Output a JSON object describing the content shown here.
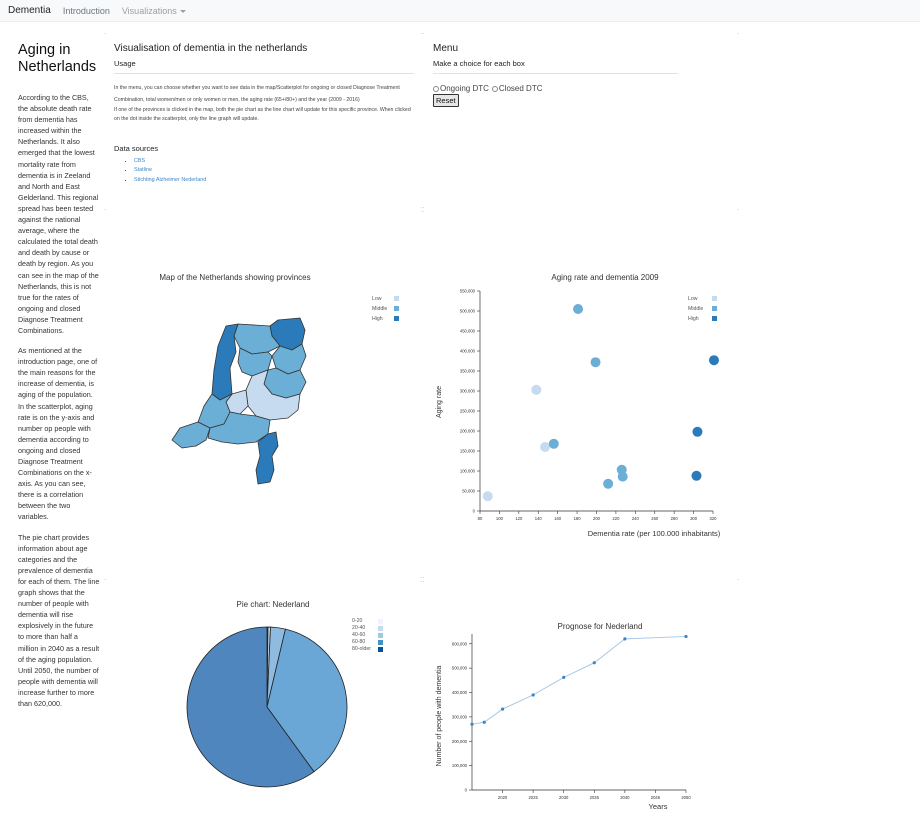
{
  "nav": {
    "brand": "Dementia",
    "links": [
      "Introduction",
      "Visualizations"
    ]
  },
  "left": {
    "title": "Aging in Netherlands",
    "paragraphs": [
      "According to the CBS, the absolute death rate from dementia has increased within the Netherlands. It also emerged that the lowest mortality rate from dementia is in Zeeland and North and East Gelderland. This regional spread has been tested against the national average, where the calculated the total death and death by cause or death by region. As you can see in the map of the Netherlands, this is not true for the rates of ongoing and closed Diagnose Treatment Combinations.",
      "As mentioned at the introduction page, one of the main reasons for the increase of dementia, is aging of the population. In the scatterplot, aging rate is on the y-axis and number op people with dementia according to ongoing and closed Diagnose Treatment Combinations on the x-axis. As you can see, there is a correlation between the two variables.",
      "The pie chart provides information about age categories and the prevalence of dementia for each of them. The line graph shows that the number of people with dementia will rise explosively in the future to more than half a million in 2040 as a result of the aging population. Until 2050, the number of people with dementia will increase further to more than 620,000."
    ]
  },
  "usage": {
    "title": "Visualisation of dementia in the netherlands",
    "subtitle": "Usage",
    "text1": "In the menu, you can choose whether you want to see data in the map/Scatterplot for ongoing or closed Diagnose Treatment Combination, total women/men or only women or men, the aging rate (65+/80+) and the year (2009 - 2016)",
    "text2": "If one of the provinces is clicked in the map, both the pie chart as the line chart will update for this specific province. When clicked on the dot inside the scatterplot, only the line graph will update.",
    "sources_title": "Data sources",
    "sources": [
      "CBS",
      "Statline",
      "Stichting Alzheimer Nederland"
    ]
  },
  "menu": {
    "title": "Menu",
    "subtitle": "Make a choice for each box",
    "options": [
      "Ongoing DTC",
      "Closed DTC"
    ],
    "reset": "Reset"
  },
  "map": {
    "title": "Map of the Netherlands showing provinces",
    "legend": [
      {
        "label": "Low",
        "color": "#c6dbef"
      },
      {
        "label": "Middle",
        "color": "#6baed6"
      },
      {
        "label": "High",
        "color": "#2b7bba"
      }
    ]
  },
  "scatter_legend": [
    {
      "label": "Low",
      "color": "#c6dbef"
    },
    {
      "label": "Middle",
      "color": "#6baed6"
    },
    {
      "label": "High",
      "color": "#2b7bba"
    }
  ],
  "pie_legend": [
    {
      "label": "0-20",
      "color": "#eff3ff"
    },
    {
      "label": "20-40",
      "color": "#c6dbef"
    },
    {
      "label": "40-60",
      "color": "#9ecae1"
    },
    {
      "label": "60-80",
      "color": "#4292c6"
    },
    {
      "label": "80-older",
      "color": "#08519c"
    }
  ],
  "chart_data": [
    {
      "type": "scatter",
      "title": "Aging rate and dementia 2009",
      "xlabel": "Dementia rate (per 100.000 inhabitants)",
      "ylabel": "Aging rate",
      "xlim": [
        80,
        320
      ],
      "ylim": [
        0,
        550000
      ],
      "xticks": [
        80,
        100,
        120,
        140,
        160,
        180,
        200,
        220,
        240,
        260,
        280,
        300,
        320
      ],
      "yticks": [
        0,
        50000,
        100000,
        150000,
        200000,
        250000,
        300000,
        350000,
        400000,
        450000,
        500000,
        550000
      ],
      "ytick_labels": [
        "0",
        "50,000",
        "100,000",
        "150,000",
        "200,000",
        "250,000",
        "300,000",
        "350,000",
        "400,000",
        "450,000",
        "500,000",
        "550,000"
      ],
      "points": [
        {
          "x": 181,
          "y": 505000,
          "level": "Middle"
        },
        {
          "x": 199,
          "y": 372000,
          "level": "Middle"
        },
        {
          "x": 138,
          "y": 303000,
          "level": "Low"
        },
        {
          "x": 321,
          "y": 377000,
          "level": "High"
        },
        {
          "x": 304,
          "y": 198000,
          "level": "High"
        },
        {
          "x": 147,
          "y": 160000,
          "level": "Low"
        },
        {
          "x": 156,
          "y": 168000,
          "level": "Middle"
        },
        {
          "x": 226,
          "y": 103000,
          "level": "Middle"
        },
        {
          "x": 227,
          "y": 86000,
          "level": "Middle"
        },
        {
          "x": 303,
          "y": 88000,
          "level": "High"
        },
        {
          "x": 212,
          "y": 68000,
          "level": "Middle"
        },
        {
          "x": 88,
          "y": 37000,
          "level": "Low"
        }
      ]
    },
    {
      "type": "pie",
      "title": "Pie chart: Nederland",
      "labels": [
        "0-20",
        "20-40",
        "40-60",
        "60-80",
        "80-older"
      ],
      "values": [
        0.2,
        0.5,
        3,
        36.3,
        60
      ]
    },
    {
      "type": "line",
      "title": "Prognose for Nederland",
      "xlabel": "Years",
      "ylabel": "Number of people with dementia",
      "xlim": [
        2015,
        2050
      ],
      "ylim": [
        0,
        640000
      ],
      "xticks": [
        2020,
        2025,
        2030,
        2035,
        2040,
        2045,
        2050
      ],
      "yticks": [
        0,
        100000,
        200000,
        300000,
        400000,
        500000,
        600000
      ],
      "ytick_labels": [
        "0",
        "100,000",
        "200,000",
        "300,000",
        "400,000",
        "500,000",
        "600,000"
      ],
      "x": [
        2015,
        2017,
        2020,
        2025,
        2030,
        2035,
        2040,
        2050
      ],
      "y": [
        270000,
        278000,
        332000,
        390000,
        462000,
        522000,
        620000,
        630000
      ]
    }
  ]
}
